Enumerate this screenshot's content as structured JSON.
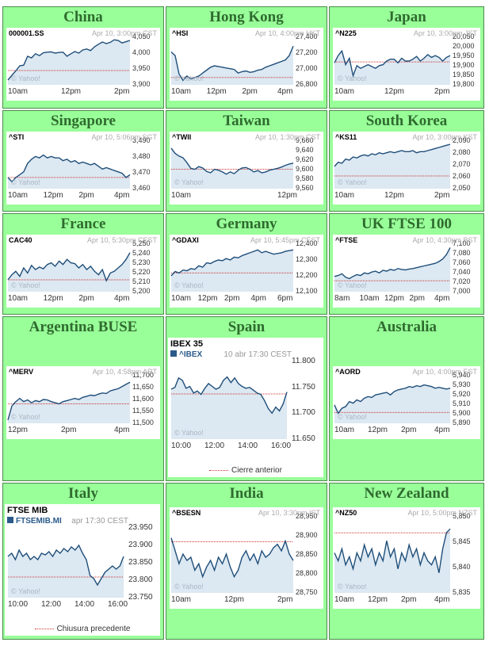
{
  "cells": [
    {
      "title": "China",
      "symbol": "000001.SS",
      "time": "Apr 10, 3:00pm CST",
      "y_labels": [
        "4,050",
        "4,000",
        "3,950",
        "3,900"
      ],
      "x_labels": [
        "10am",
        "12pm",
        "2pm"
      ],
      "watermark": "© Yahoo!",
      "prev_close": 3945,
      "y_range": [
        3900,
        4050
      ],
      "series": [
        3915,
        3930,
        3944,
        3960,
        3962,
        3990,
        3985,
        3998,
        3992,
        4001,
        4003,
        4004,
        4000,
        4002,
        4003,
        3990,
        3998,
        4005,
        4000,
        4010,
        4013,
        4008,
        4020,
        4028,
        4035,
        4030,
        4034,
        4042,
        4040,
        4032,
        4036,
        4040
      ]
    },
    {
      "title": "Hong Kong",
      "symbol": "^HSI",
      "time": "Apr 10, 4:00pm HKT",
      "y_labels": [
        "27,400",
        "27,200",
        "27,000",
        "26,800"
      ],
      "x_labels": [
        "10am",
        "12pm",
        "2pm",
        "4pm"
      ],
      "watermark": "© Yahoo!",
      "prev_close": 26900,
      "y_range": [
        26800,
        27450
      ],
      "series": [
        27250,
        27200,
        26950,
        26860,
        26920,
        26880,
        26900,
        26920,
        26960,
        27000,
        27040,
        27060,
        27050,
        27040,
        27030,
        27020,
        27010,
        26960,
        26980,
        26990,
        26970,
        26980,
        27000,
        27010,
        27040,
        27060,
        27080,
        27100,
        27120,
        27140,
        27200,
        27330
      ]
    },
    {
      "title": "Japan",
      "symbol": "^N225",
      "time": "Apr 10, 3:00pm JST",
      "y_labels": [
        "20,050",
        "20,000",
        "19,950",
        "19,900",
        "19,850",
        "19,800"
      ],
      "x_labels": [
        "10am",
        "12pm",
        "2pm"
      ],
      "watermark": "© Yahoo!",
      "prev_close": 19925,
      "y_range": [
        19800,
        20060
      ],
      "series": [
        19920,
        19960,
        19985,
        19910,
        19945,
        19850,
        19905,
        19890,
        19900,
        19910,
        19900,
        19890,
        19905,
        19910,
        19930,
        19940,
        19940,
        19920,
        19945,
        19930,
        19930,
        19940,
        19955,
        19930,
        19945,
        19965,
        19950,
        19960,
        19950,
        19930,
        19950,
        19960
      ]
    },
    {
      "title": "Singapore",
      "symbol": "^STI",
      "time": "Apr 10, 5:06pm SGT",
      "y_labels": [
        "3,490",
        "3,480",
        "3,470",
        "3,460"
      ],
      "x_labels": [
        "10am",
        "12pm",
        "2pm",
        "4pm"
      ],
      "watermark": "© Yahoo!",
      "prev_close": 3466,
      "y_range": [
        3458,
        3492
      ],
      "series": [
        3466,
        3463,
        3466,
        3468,
        3470,
        3476,
        3479,
        3481,
        3480,
        3482,
        3480,
        3481,
        3480,
        3480,
        3478,
        3479,
        3477,
        3478,
        3476,
        3477,
        3476,
        3475,
        3476,
        3474,
        3472,
        3473,
        3472,
        3471,
        3470,
        3469,
        3466,
        3468
      ]
    },
    {
      "title": "Taiwan",
      "symbol": "^TWII",
      "time": "Apr 10, 1:30pm CST",
      "y_labels": [
        "9,660",
        "9,640",
        "9,620",
        "9,600",
        "9,580",
        "9,560"
      ],
      "x_labels": [
        "10am",
        "12pm"
      ],
      "watermark": "© Yahoo!",
      "prev_close": 9600,
      "y_range": [
        9556,
        9664
      ],
      "series": [
        9648,
        9636,
        9630,
        9626,
        9615,
        9602,
        9600,
        9606,
        9603,
        9595,
        9592,
        9600,
        9598,
        9594,
        9589,
        9594,
        9590,
        9598,
        9603,
        9604,
        9600,
        9594,
        9597,
        9592,
        9594,
        9598,
        9600,
        9602,
        9605,
        9609,
        9612,
        9614
      ]
    },
    {
      "title": "South Korea",
      "symbol": "^KS11",
      "time": "Apr 10, 3:00pm KST",
      "y_labels": [
        "2,090",
        "2,080",
        "2,070",
        "2,060",
        "2,050"
      ],
      "x_labels": [
        "10am",
        "12pm",
        "2pm"
      ],
      "watermark": "© Yahoo!",
      "prev_close": 2059,
      "y_range": [
        2047,
        2092
      ],
      "series": [
        2068,
        2072,
        2071,
        2075,
        2074,
        2077,
        2076,
        2078,
        2079,
        2078,
        2080,
        2079,
        2081,
        2080,
        2081,
        2082,
        2081,
        2082,
        2083,
        2082,
        2082,
        2083,
        2081,
        2082,
        2082,
        2083,
        2084,
        2085,
        2086,
        2087,
        2088,
        2089
      ]
    },
    {
      "title": "France",
      "symbol": "CAC40",
      "time": "Apr 10, 5:30pm CEST",
      "y_labels": [
        "5,250",
        "5,240",
        "5,230",
        "5,220",
        "5,210",
        "5,200"
      ],
      "x_labels": [
        "10am",
        "12pm",
        "2pm",
        "4pm"
      ],
      "watermark": "© Yahoo!",
      "prev_close": 5212,
      "y_range": [
        5198,
        5254
      ],
      "series": [
        5212,
        5218,
        5222,
        5216,
        5226,
        5220,
        5229,
        5224,
        5227,
        5225,
        5230,
        5232,
        5228,
        5234,
        5230,
        5236,
        5232,
        5231,
        5226,
        5230,
        5224,
        5228,
        5222,
        5218,
        5224,
        5211,
        5220,
        5222,
        5226,
        5230,
        5236,
        5244
      ]
    },
    {
      "title": "Germany",
      "symbol": "^GDAXI",
      "time": "Apr 10, 5:45pm CEST",
      "y_labels": [
        "12,400",
        "12,300",
        "12,200",
        "12,100"
      ],
      "x_labels": [
        "10am",
        "12pm",
        "2pm",
        "4pm",
        "6pm"
      ],
      "watermark": "© Yahoo!",
      "prev_close": 12220,
      "y_range": [
        12090,
        12420
      ],
      "series": [
        12200,
        12230,
        12220,
        12240,
        12235,
        12250,
        12245,
        12270,
        12260,
        12290,
        12285,
        12300,
        12310,
        12305,
        12320,
        12310,
        12330,
        12325,
        12340,
        12350,
        12360,
        12370,
        12380,
        12360,
        12370,
        12360,
        12350,
        12355,
        12360,
        12370,
        12375,
        12380
      ]
    },
    {
      "title": "UK FTSE 100",
      "symbol": "^FTSE",
      "time": "Apr 10, 4:30pm BST",
      "y_labels": [
        "7,100",
        "7,080",
        "7,060",
        "7,040",
        "7,020",
        "7,000"
      ],
      "x_labels": [
        "8am",
        "10am",
        "12pm",
        "2pm",
        "4pm"
      ],
      "watermark": "© Yahoo!",
      "prev_close": 7020,
      "y_range": [
        6995,
        7104
      ],
      "series": [
        7030,
        7032,
        7036,
        7028,
        7025,
        7030,
        7034,
        7032,
        7038,
        7036,
        7040,
        7042,
        7038,
        7044,
        7042,
        7046,
        7044,
        7048,
        7046,
        7045,
        7047,
        7048,
        7050,
        7052,
        7054,
        7056,
        7058,
        7060,
        7064,
        7070,
        7080,
        7096
      ]
    },
    {
      "title": "Argentina BUSE",
      "symbol": "^MERV",
      "time": "Apr 10, 4:58pm ART",
      "y_labels": [
        "11,700",
        "11,650",
        "11,600",
        "11,550",
        "11,500"
      ],
      "x_labels": [
        "12pm",
        "2pm",
        "4pm"
      ],
      "watermark": "© Yahoo!",
      "prev_close": 11580,
      "y_range": [
        11490,
        11710
      ],
      "series": [
        11505,
        11570,
        11590,
        11605,
        11590,
        11598,
        11585,
        11595,
        11590,
        11600,
        11598,
        11590,
        11585,
        11580,
        11590,
        11595,
        11600,
        11605,
        11600,
        11610,
        11615,
        11620,
        11618,
        11625,
        11630,
        11628,
        11640,
        11645,
        11650,
        11660,
        11670,
        11680
      ]
    },
    {
      "title": "Spain",
      "large": true,
      "name": "IBEX 35",
      "symbol": "^IBEX",
      "time": "10 abr 17:30 CEST",
      "y_labels": [
        "11.800",
        "11.750",
        "11.700",
        "11.650"
      ],
      "x_labels": [
        "10:00",
        "12:00",
        "14:00",
        "16:00"
      ],
      "watermark": "© Yahoo!",
      "legend": "Cierre anterior",
      "prev_close": 11736,
      "y_range": [
        11640,
        11805
      ],
      "series": [
        11746,
        11750,
        11770,
        11765,
        11748,
        11752,
        11738,
        11742,
        11735,
        11748,
        11758,
        11752,
        11746,
        11750,
        11765,
        11772,
        11760,
        11770,
        11758,
        11752,
        11748,
        11750,
        11744,
        11738,
        11735,
        11722,
        11705,
        11695,
        11708,
        11700,
        11715,
        11740
      ]
    },
    {
      "title": "Australia",
      "symbol": "^AORD",
      "time": "Apr 10, 4:00pm EST",
      "y_labels": [
        "5,940",
        "5,930",
        "5,920",
        "5,910",
        "5,900",
        "5,890"
      ],
      "x_labels": [
        "10am",
        "12pm",
        "2pm",
        "4pm"
      ],
      "watermark": "© Yahoo!",
      "prev_close": 5899,
      "y_range": [
        5886,
        5943
      ],
      "series": [
        5908,
        5898,
        5904,
        5906,
        5912,
        5910,
        5914,
        5912,
        5916,
        5918,
        5917,
        5920,
        5921,
        5922,
        5923,
        5920,
        5924,
        5926,
        5927,
        5928,
        5930,
        5929,
        5931,
        5930,
        5932,
        5931,
        5930,
        5928,
        5929,
        5928,
        5927,
        5928
      ]
    },
    {
      "title": "Italy",
      "large": true,
      "name": "FTSE MIB",
      "symbol": "FTSEMIB.MI",
      "time": "apr 17:30 CEST",
      "y_labels": [
        "23.950",
        "23.900",
        "23.850",
        "23.800",
        "23.750"
      ],
      "x_labels": [
        "10:00",
        "12:00",
        "14:00",
        "16:00"
      ],
      "watermark": "© Yahoo!",
      "legend": "Chiusura precedente",
      "prev_close": 23805,
      "y_range": [
        23740,
        23960
      ],
      "series": [
        23870,
        23880,
        23860,
        23890,
        23870,
        23880,
        23860,
        23870,
        23860,
        23880,
        23875,
        23885,
        23870,
        23890,
        23880,
        23895,
        23885,
        23900,
        23890,
        23905,
        23880,
        23860,
        23810,
        23800,
        23780,
        23800,
        23820,
        23830,
        23840,
        23830,
        23840,
        23870
      ]
    },
    {
      "title": "India",
      "symbol": "^BSESN",
      "time": "Apr 10, 3:30pm IST",
      "y_labels": [
        "28,950",
        "28,900",
        "28,850",
        "28,800",
        "28,750"
      ],
      "x_labels": [
        "10am",
        "12pm",
        "2pm"
      ],
      "watermark": "© Yahoo!",
      "prev_close": 28888,
      "y_range": [
        28730,
        28965
      ],
      "series": [
        28900,
        28860,
        28820,
        28850,
        28830,
        28840,
        28800,
        28820,
        28780,
        28810,
        28830,
        28800,
        28840,
        28820,
        28850,
        28810,
        28780,
        28800,
        28840,
        28860,
        28830,
        28850,
        28820,
        28860,
        28840,
        28850,
        28870,
        28880,
        28860,
        28890,
        28850,
        28830
      ]
    },
    {
      "title": "New Zealand",
      "symbol": "^NZ50",
      "time": "Apr 10, 5:00pm NZST",
      "y_labels": [
        "5,850",
        "5,845",
        "5,840",
        "5,835"
      ],
      "x_labels": [
        "10am",
        "12pm",
        "2pm",
        "4pm"
      ],
      "watermark": "© Yahoo!",
      "prev_close": 5848,
      "y_range": [
        5833,
        5852
      ],
      "series": [
        5843,
        5841,
        5844,
        5840,
        5842,
        5839,
        5843,
        5841,
        5845,
        5842,
        5844,
        5840,
        5843,
        5841,
        5846,
        5842,
        5844,
        5839,
        5843,
        5841,
        5845,
        5842,
        5844,
        5840,
        5843,
        5841,
        5840,
        5842,
        5838,
        5844,
        5848,
        5849
      ]
    }
  ]
}
